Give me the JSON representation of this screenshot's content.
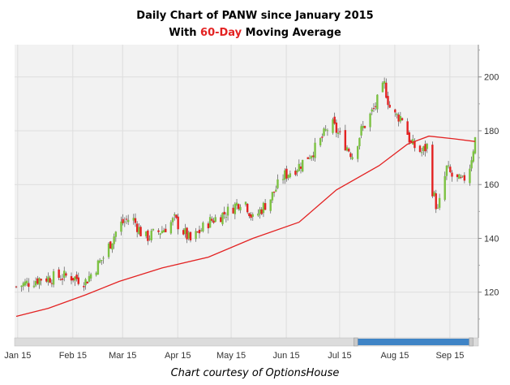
{
  "title": {
    "line1": "Daily Chart of PANW since January 2015",
    "line2_prefix": "With ",
    "line2_highlight": "60-Day",
    "line2_suffix": " Moving Average"
  },
  "caption": "Chart courtesy of OptionsHouse",
  "colors": {
    "up_candle": "#7cc242",
    "down_candle": "#e32222",
    "moving_average": "#e32222",
    "plot_background": "#f2f2f2",
    "scrollbar_thumb": "#3f84c6"
  },
  "scrollbar": {
    "visible_fraction_start": 0.74,
    "visible_fraction_end": 0.98
  },
  "chart_data": {
    "type": "line",
    "subtype": "candlestick",
    "title": "Daily Chart of PANW since January 2015 With 60-Day Moving Average",
    "x_tick_labels": [
      "Jan 15",
      "Feb 15",
      "Mar 15",
      "Apr 15",
      "May 15",
      "Jun 15",
      "Jul 15",
      "Aug 15",
      "Sep 15"
    ],
    "y_ticks": [
      120,
      140,
      160,
      180,
      200
    ],
    "ylim": [
      103,
      212
    ],
    "xlim": [
      "2015-01-02",
      "2015-09-17"
    ],
    "grid": true,
    "y_axis_position": "right",
    "series": [
      {
        "name": "PANW",
        "kind": "price",
        "points": [
          {
            "date": "2015-01-02",
            "close": 122
          },
          {
            "date": "2015-01-15",
            "close": 125
          },
          {
            "date": "2015-02-01",
            "close": 126
          },
          {
            "date": "2015-02-10",
            "close": 124
          },
          {
            "date": "2015-02-20",
            "close": 133
          },
          {
            "date": "2015-03-01",
            "close": 145
          },
          {
            "date": "2015-03-08",
            "close": 148
          },
          {
            "date": "2015-03-15",
            "close": 140
          },
          {
            "date": "2015-03-25",
            "close": 143
          },
          {
            "date": "2015-04-01",
            "close": 147
          },
          {
            "date": "2015-04-10",
            "close": 139
          },
          {
            "date": "2015-04-20",
            "close": 146
          },
          {
            "date": "2015-05-01",
            "close": 150
          },
          {
            "date": "2015-05-10",
            "close": 155
          },
          {
            "date": "2015-05-15",
            "close": 147
          },
          {
            "date": "2015-05-25",
            "close": 155
          },
          {
            "date": "2015-06-01",
            "close": 163
          },
          {
            "date": "2015-06-10",
            "close": 167
          },
          {
            "date": "2015-06-20",
            "close": 174
          },
          {
            "date": "2015-06-28",
            "close": 183
          },
          {
            "date": "2015-07-05",
            "close": 176
          },
          {
            "date": "2015-07-10",
            "close": 171
          },
          {
            "date": "2015-07-15",
            "close": 180
          },
          {
            "date": "2015-07-22",
            "close": 188
          },
          {
            "date": "2015-07-28",
            "close": 197
          },
          {
            "date": "2015-08-01",
            "close": 186
          },
          {
            "date": "2015-08-07",
            "close": 185
          },
          {
            "date": "2015-08-12",
            "close": 175
          },
          {
            "date": "2015-08-18",
            "close": 172
          },
          {
            "date": "2015-08-22",
            "close": 175
          },
          {
            "date": "2015-08-24",
            "close": 158
          },
          {
            "date": "2015-08-27",
            "close": 150
          },
          {
            "date": "2015-09-01",
            "close": 166
          },
          {
            "date": "2015-09-05",
            "close": 162
          },
          {
            "date": "2015-09-10",
            "close": 161
          },
          {
            "date": "2015-09-14",
            "close": 167
          },
          {
            "date": "2015-09-17",
            "close": 177
          }
        ]
      },
      {
        "name": "60-Day Moving Average",
        "kind": "moving_average",
        "points": [
          {
            "date": "2015-01-02",
            "value": 111
          },
          {
            "date": "2015-01-20",
            "value": 114
          },
          {
            "date": "2015-02-10",
            "value": 119
          },
          {
            "date": "2015-03-01",
            "value": 124
          },
          {
            "date": "2015-03-25",
            "value": 129
          },
          {
            "date": "2015-04-20",
            "value": 133
          },
          {
            "date": "2015-05-15",
            "value": 140
          },
          {
            "date": "2015-06-10",
            "value": 146
          },
          {
            "date": "2015-07-01",
            "value": 158
          },
          {
            "date": "2015-07-25",
            "value": 167
          },
          {
            "date": "2015-08-10",
            "value": 175
          },
          {
            "date": "2015-08-22",
            "value": 178
          },
          {
            "date": "2015-09-05",
            "value": 177
          },
          {
            "date": "2015-09-17",
            "value": 176
          }
        ]
      }
    ]
  }
}
